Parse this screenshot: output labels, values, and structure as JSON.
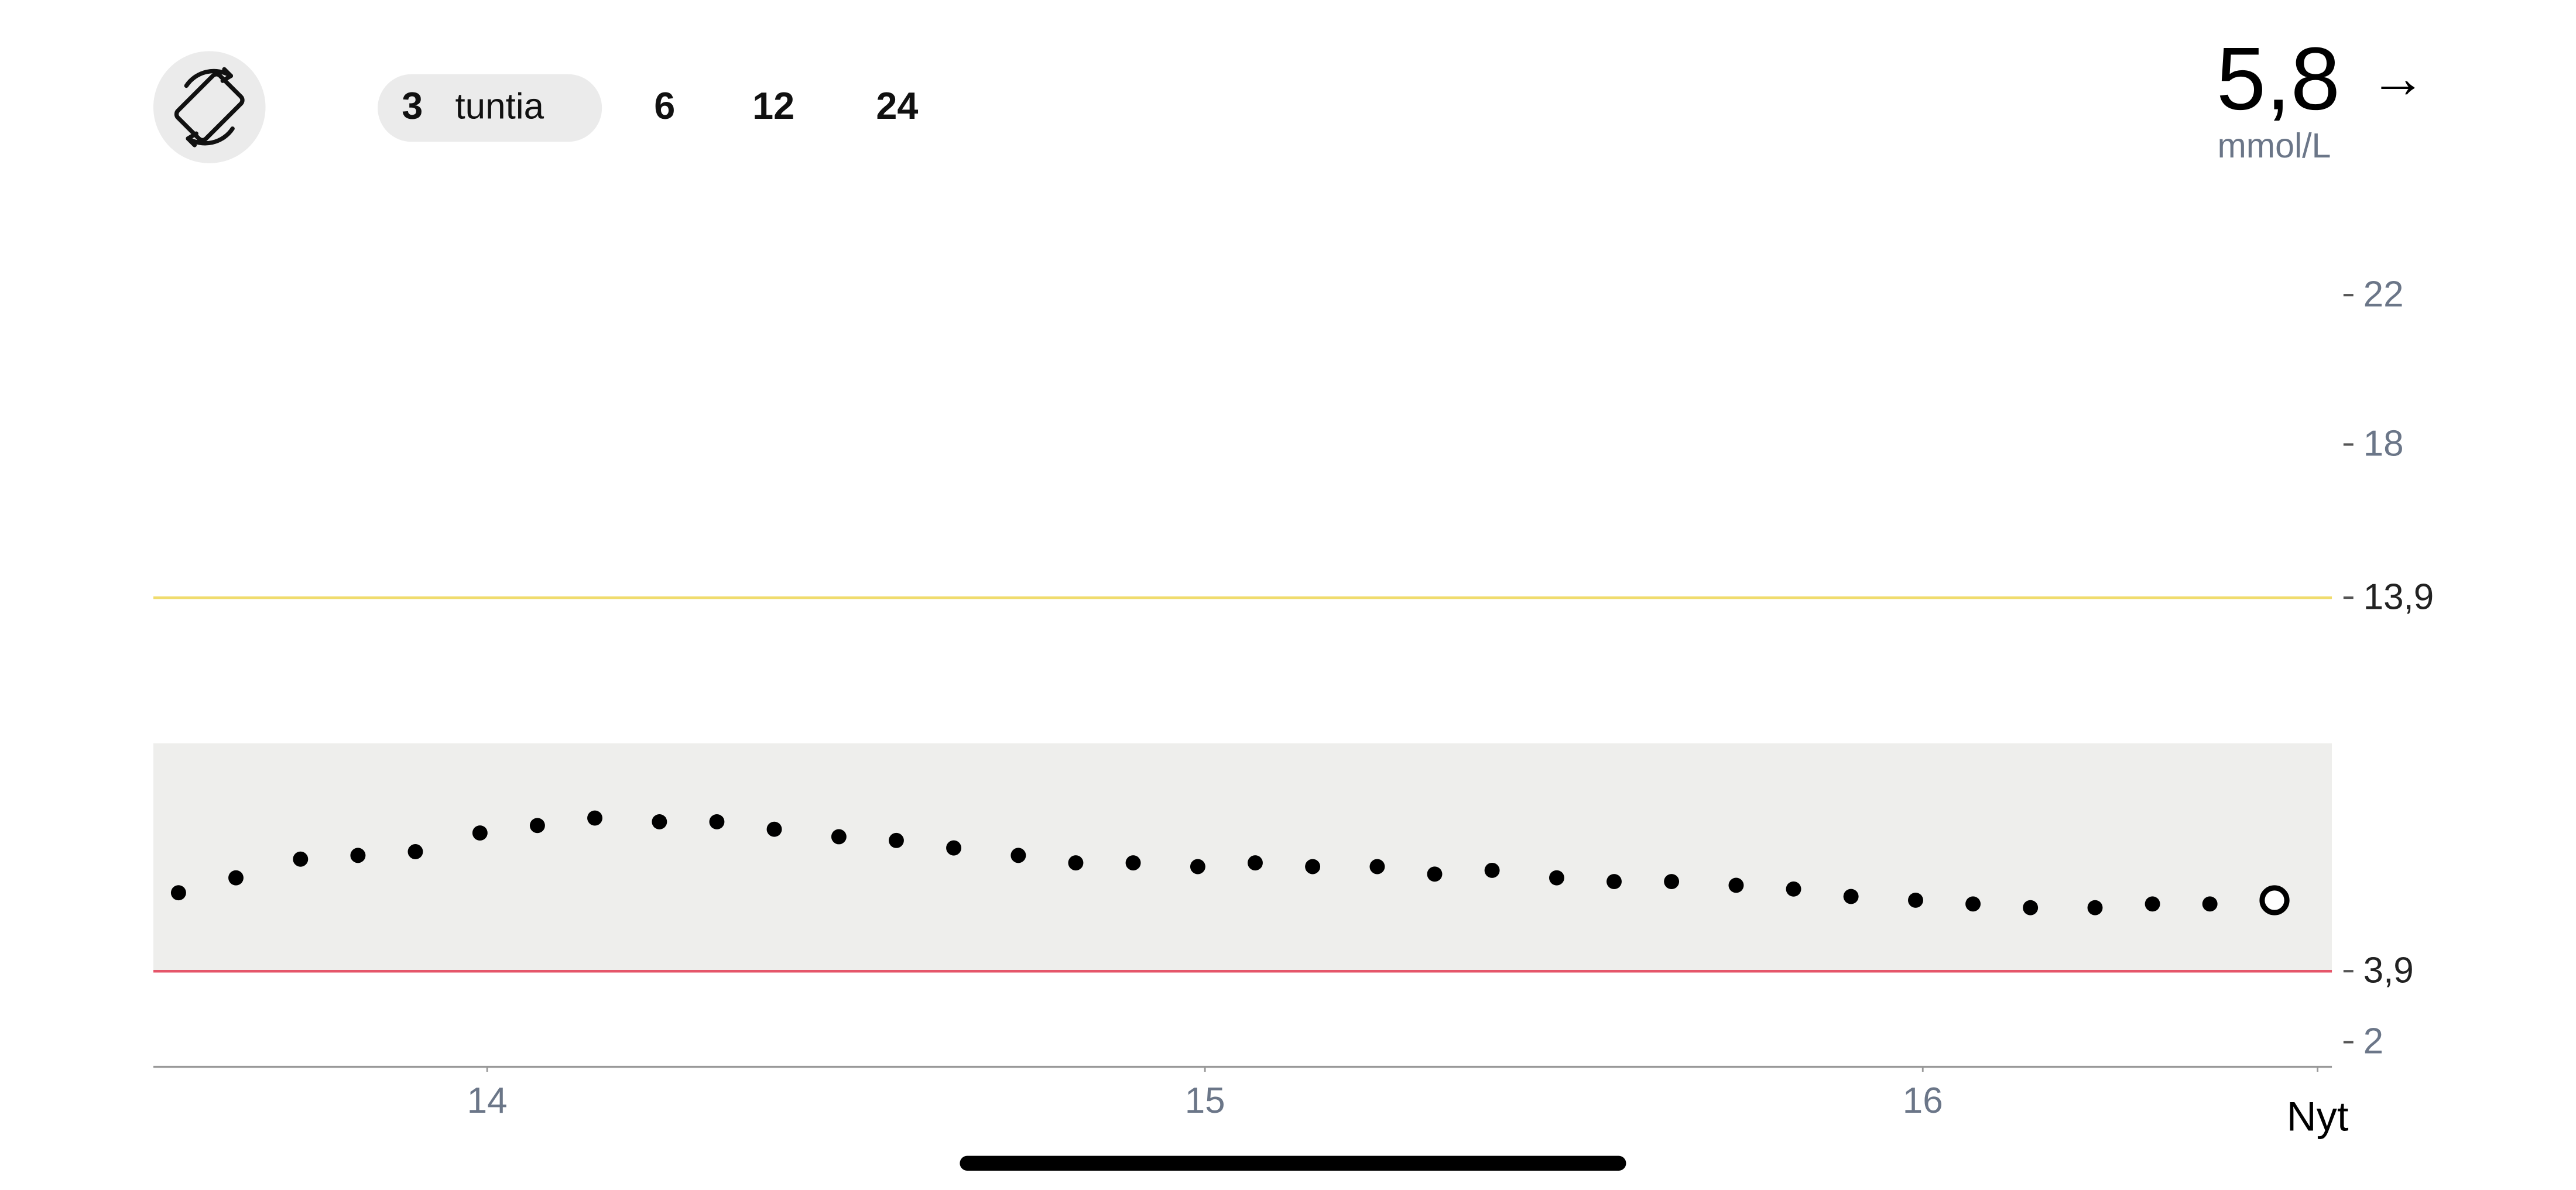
{
  "header": {
    "ranges": [
      "3",
      "6",
      "12",
      "24"
    ],
    "range_unit": "tuntia",
    "current_value": "5,8",
    "trend": "→",
    "unit": "mmol/L"
  },
  "chart_data": {
    "type": "scatter",
    "x": [
      13.57,
      13.65,
      13.74,
      13.82,
      13.9,
      13.99,
      14.07,
      14.15,
      14.24,
      14.32,
      14.4,
      14.49,
      14.57,
      14.65,
      14.74,
      14.82,
      14.9,
      14.99,
      15.07,
      15.15,
      15.24,
      15.32,
      15.4,
      15.49,
      15.57,
      15.65,
      15.74,
      15.82,
      15.9,
      15.99,
      16.07,
      16.15,
      16.24,
      16.32,
      16.4,
      16.49
    ],
    "values": [
      6.0,
      6.4,
      6.9,
      7.0,
      7.1,
      7.6,
      7.8,
      8.0,
      7.9,
      7.9,
      7.7,
      7.5,
      7.4,
      7.2,
      7.0,
      6.8,
      6.8,
      6.7,
      6.8,
      6.7,
      6.7,
      6.5,
      6.6,
      6.4,
      6.3,
      6.3,
      6.2,
      6.1,
      5.9,
      5.8,
      5.7,
      5.6,
      5.6,
      5.7,
      5.7,
      5.8
    ],
    "color": "#000000",
    "xlim": [
      13.535,
      16.57
    ],
    "xticks": [
      14,
      15,
      16,
      {
        "value": 16.55,
        "label": "Nyt"
      }
    ],
    "ylim": [
      1.34,
      23.5
    ],
    "yticks": [
      2,
      {
        "value": 3.9,
        "label": "3,9"
      },
      {
        "value": 13.9,
        "label": "13,9"
      },
      18,
      22
    ],
    "target_range": [
      3.9,
      10
    ],
    "target_color": "#eeeeec",
    "high_line": 13.9,
    "high_color": "#f0dc6e",
    "low_line": 3.9,
    "low_color": "#e5566a"
  }
}
